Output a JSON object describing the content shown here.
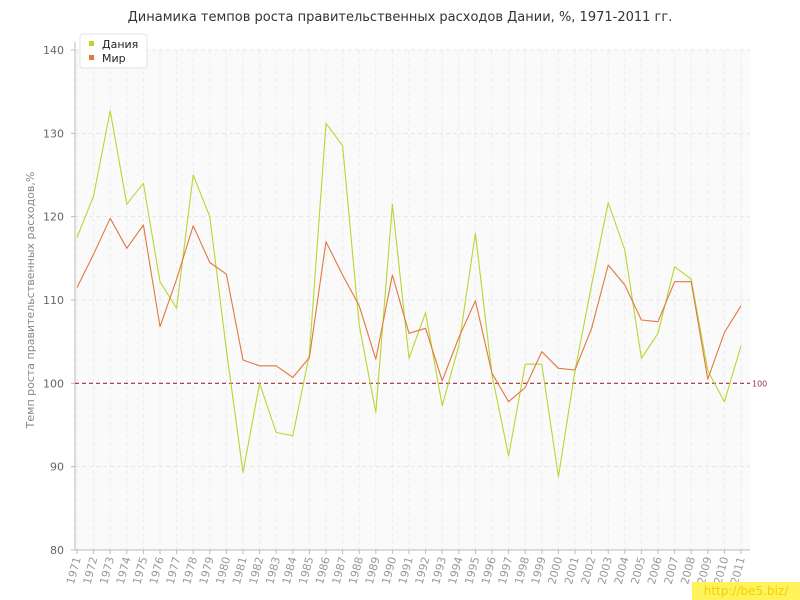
{
  "chart_data": {
    "type": "line",
    "title": "Динамика темпов роста правительственных расходов Дании, %, 1971-2011 гг.",
    "xlabel": "",
    "ylabel": "Темп роста правительственных расходов,%",
    "ylim": [
      80,
      140
    ],
    "yticks": [
      "80",
      "90",
      "100",
      "110",
      "120",
      "130",
      "140"
    ],
    "grid": true,
    "legend_position": "top-left",
    "categories": [
      "1971",
      "1972",
      "1973",
      "1974",
      "1975",
      "1976",
      "1977",
      "1978",
      "1979",
      "1980",
      "1981",
      "1982",
      "1983",
      "1984",
      "1985",
      "1986",
      "1987",
      "1988",
      "1989",
      "1990",
      "1991",
      "1992",
      "1993",
      "1994",
      "1995",
      "1996",
      "1997",
      "1998",
      "1999",
      "2000",
      "2001",
      "2002",
      "2003",
      "2004",
      "2005",
      "2006",
      "2007",
      "2008",
      "2009",
      "2010",
      "2011"
    ],
    "series": [
      {
        "name": "Дания",
        "color": "#b8d630",
        "values": [
          117.5,
          122.5,
          132.7,
          121.5,
          124.0,
          112.2,
          109.0,
          125.0,
          120.0,
          104.0,
          89.3,
          100.0,
          94.1,
          93.7,
          103.5,
          131.2,
          128.5,
          107.0,
          96.5,
          121.5,
          103.0,
          108.5,
          97.3,
          104.5,
          118.0,
          101.0,
          91.3,
          102.3,
          102.3,
          88.8,
          101.5,
          111.8,
          121.7,
          116.0,
          103.0,
          106.0,
          114.0,
          112.5,
          101.5,
          97.8,
          104.5
        ]
      },
      {
        "name": "Мир",
        "color": "#e07840",
        "values": [
          111.5,
          115.5,
          119.8,
          116.2,
          119.0,
          106.8,
          112.5,
          118.9,
          114.5,
          113.1,
          102.8,
          102.1,
          102.1,
          100.7,
          103.1,
          117.0,
          113.0,
          109.3,
          102.9,
          113.0,
          106.0,
          106.6,
          100.3,
          105.5,
          109.9,
          101.2,
          97.8,
          99.5,
          103.8,
          101.8,
          101.6,
          106.6,
          114.2,
          111.8,
          107.6,
          107.4,
          112.2,
          112.2,
          100.5,
          106.1,
          109.3
        ]
      }
    ],
    "reference_line": {
      "value": 100,
      "label": "100",
      "color": "#a03040"
    }
  },
  "watermark": "http://be5.biz/"
}
